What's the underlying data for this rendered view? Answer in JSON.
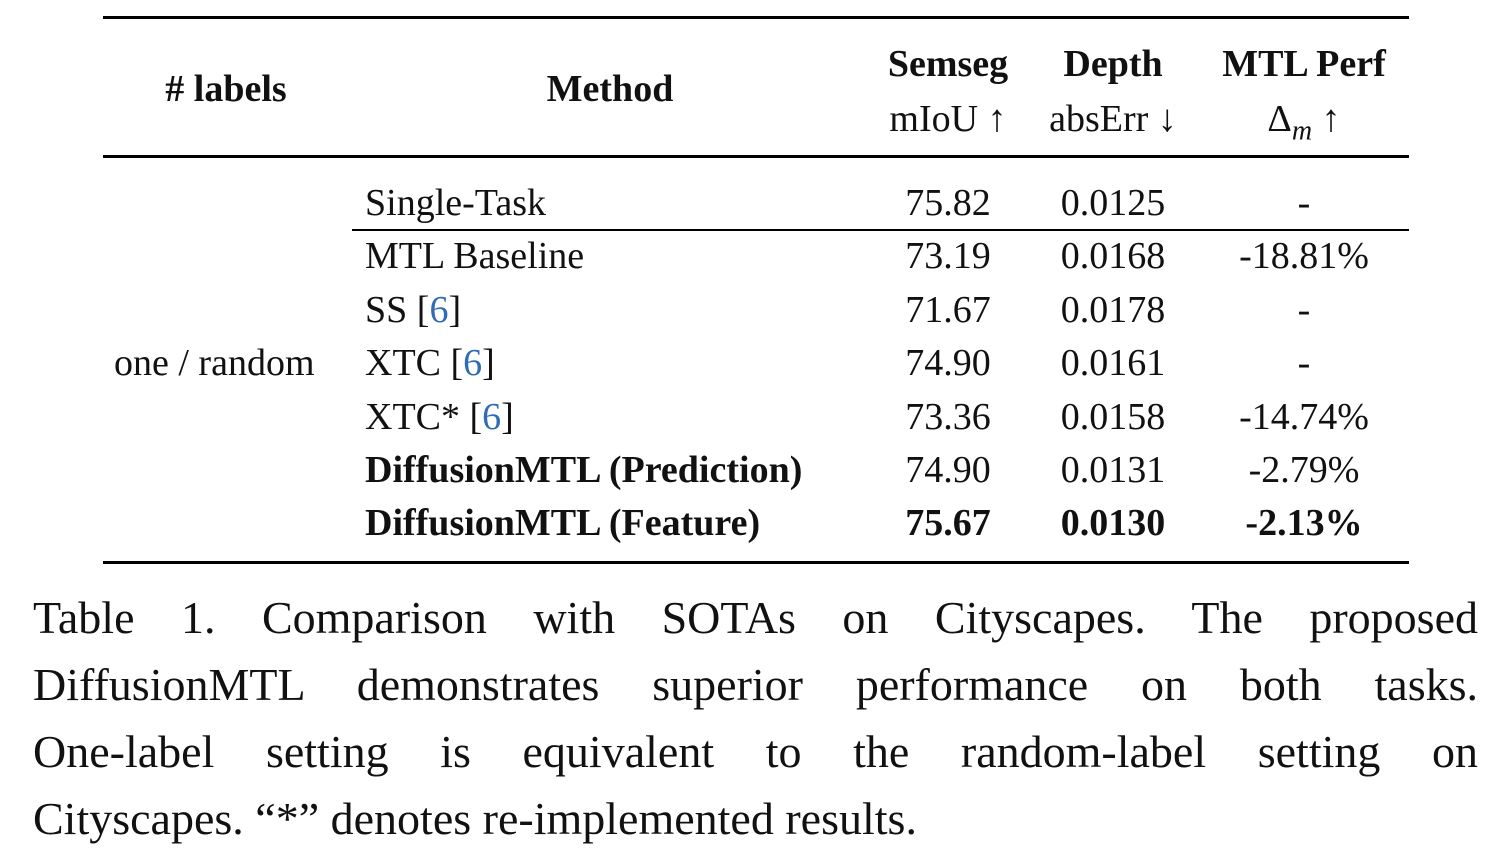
{
  "table": {
    "headers": {
      "labels": "# labels",
      "method": "Method",
      "semseg": "Semseg",
      "semseg_metric": "mIoU ↑",
      "depth": "Depth",
      "depth_metric": "absErr ↓",
      "mtl": "MTL Perf",
      "mtl_metric_sym": "Δ",
      "mtl_metric_sub": "m",
      "mtl_metric_arrow": "↑"
    },
    "group_label": "one / random",
    "rows": [
      {
        "method": "Single-Task",
        "cite": "",
        "cite_open": "",
        "cite_close": "",
        "semseg": "75.82",
        "depth": "0.0125",
        "mtl": "-",
        "bold": false
      },
      {
        "method": "MTL Baseline",
        "cite": "",
        "cite_open": "",
        "cite_close": "",
        "semseg": "73.19",
        "depth": "0.0168",
        "mtl": "-18.81%",
        "bold": false
      },
      {
        "method": "SS ",
        "cite": "6",
        "cite_open": "[",
        "cite_close": "]",
        "semseg": "71.67",
        "depth": "0.0178",
        "mtl": "-",
        "bold": false
      },
      {
        "method": "XTC ",
        "cite": "6",
        "cite_open": "[",
        "cite_close": "]",
        "semseg": "74.90",
        "depth": "0.0161",
        "mtl": "-",
        "bold": false
      },
      {
        "method": "XTC* ",
        "cite": "6",
        "cite_open": "[",
        "cite_close": "]",
        "semseg": "73.36",
        "depth": "0.0158",
        "mtl": "-14.74%",
        "bold": false
      },
      {
        "method": "DiffusionMTL (Prediction)",
        "cite": "",
        "cite_open": "",
        "cite_close": "",
        "semseg": "74.90",
        "depth": "0.0131",
        "mtl": "-2.79%",
        "bold": false
      },
      {
        "method": "DiffusionMTL (Feature)",
        "cite": "",
        "cite_open": "",
        "cite_close": "",
        "semseg": "75.67",
        "depth": "0.0130",
        "mtl": "-2.13%",
        "bold": true
      }
    ]
  },
  "caption": {
    "line1": "Table 1.  Comparison with SOTAs on Cityscapes.  The proposed",
    "line2": "DiffusionMTL demonstrates superior performance on both tasks.",
    "line3": "One-label setting is equivalent to the random-label setting on",
    "line4": "Cityscapes. “*” denotes re-implemented results."
  }
}
